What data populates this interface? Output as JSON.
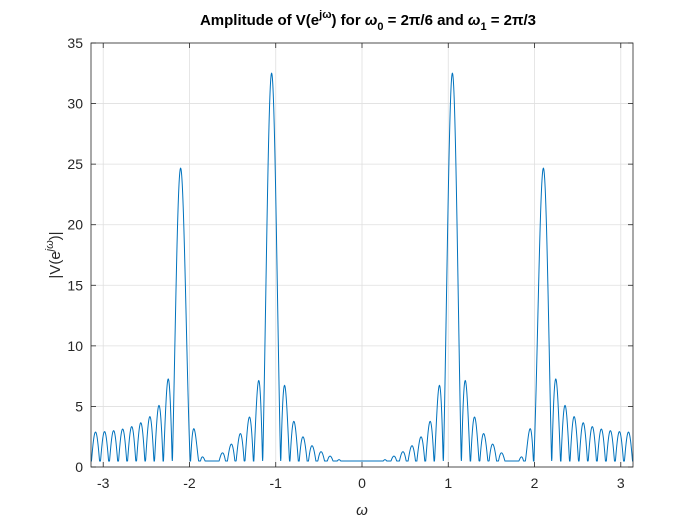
{
  "chart_data": {
    "type": "line",
    "title": {
      "prefix": "Amplitude of V(e",
      "sup": "jω",
      "middle1": ") for ",
      "w0": "ω",
      "w0_sub": "0",
      "w0_value": " = 2π/6 and ",
      "w1": "ω",
      "w1_sub": "1",
      "w1_value": " = 2π/3"
    },
    "xlabel": "ω",
    "ylabel": {
      "prefix": "|V(e",
      "sup": "jω",
      "suffix": ")|"
    },
    "xlim": [
      -3.1416,
      3.1416
    ],
    "ylim": [
      0,
      35
    ],
    "xticks": [
      -3,
      -2,
      -1,
      0,
      1,
      2,
      3
    ],
    "xtick_labels": [
      "-3",
      "-2",
      "-1",
      "0",
      "1",
      "2",
      "3"
    ],
    "yticks": [
      0,
      5,
      10,
      15,
      20,
      25,
      30,
      35
    ],
    "ytick_labels": [
      "0",
      "5",
      "10",
      "15",
      "20",
      "25",
      "30",
      "35"
    ],
    "grid": true,
    "series": [
      {
        "color": "#0072bd",
        "peaks": [
          {
            "x": -2.0944,
            "y": 24.4
          },
          {
            "x": -1.0472,
            "y": 32.5
          },
          {
            "x": 1.0472,
            "y": 32.5
          },
          {
            "x": 2.0944,
            "y": 24.4
          }
        ],
        "sidelobe_pattern": "sinc-like, sidelobe spacing ~0.1 rad, floor ~1"
      }
    ]
  }
}
